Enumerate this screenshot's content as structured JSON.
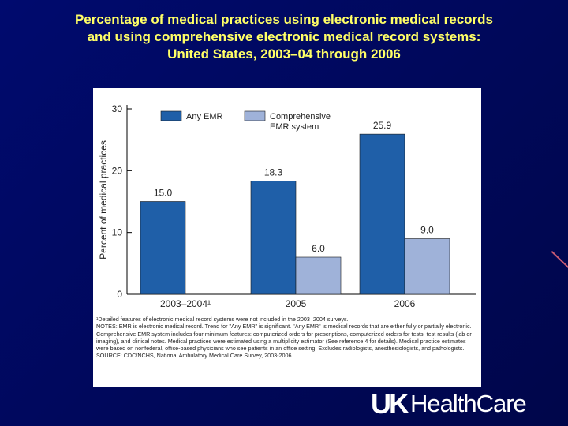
{
  "slide": {
    "title_lines": [
      "Percentage of medical practices using electronic medical records",
      "and using comprehensive electronic medical record systems:",
      "United States, 2003–04 through 2006"
    ],
    "logo": {
      "mark": "UK",
      "text": "HealthCare"
    }
  },
  "chart_data": {
    "type": "bar",
    "title": "",
    "xlabel": "",
    "ylabel": "Percent of medical practices",
    "ylim": [
      0,
      30
    ],
    "yticks": [
      0,
      10,
      20,
      30
    ],
    "grid": false,
    "legend_position": "top",
    "categories": [
      "2003–2004¹",
      "2005",
      "2006"
    ],
    "series": [
      {
        "name": "Any EMR",
        "values": [
          15.0,
          18.3,
          25.9
        ],
        "labels": [
          "15.0",
          "18.3",
          "25.9"
        ],
        "color": "#1f5fa8"
      },
      {
        "name": "Comprehensive EMR system",
        "values": [
          null,
          6.0,
          9.0
        ],
        "labels": [
          "",
          "6.0",
          "9.0"
        ],
        "color": "#9fb2d9"
      }
    ],
    "legend_labels": [
      [
        "Any EMR"
      ],
      [
        "Comprehensive",
        "EMR system"
      ]
    ]
  },
  "notes": "¹Detailed features of electronic medical record systems were not included in the 2003–2004 surveys.\nNOTES: EMR is electronic medical record. Trend for \"Any EMR\" is significant. \"Any EMR\" is medical records that are either fully or partially electronic. Comprehensive EMR system includes four minimum features: computerized orders for prescriptions, computerized orders for tests, test results (lab or imaging), and clinical notes. Medical practices were estimated using a multiplicity estimator (See reference 4 for details). Medical practice estimates were based on nonfederal, office-based physicians who see patients in an office setting. Excludes radiologists, anesthesiologists, and pathologists.\nSOURCE: CDC/NCHS, National Ambulatory Medical Care Survey, 2003-2006."
}
